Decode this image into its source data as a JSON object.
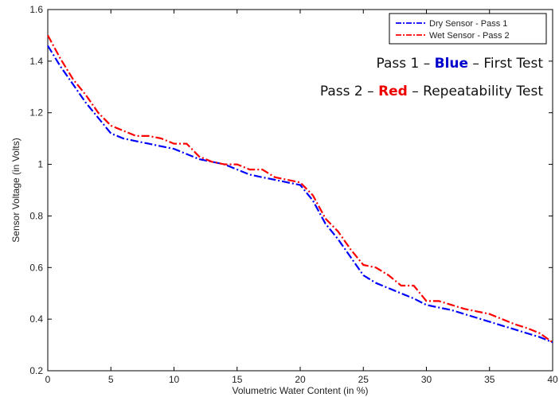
{
  "chart_data": {
    "type": "line",
    "xlabel": "Volumetric Water Content (in %)",
    "ylabel": "Sensor Voltage (in Volts)",
    "xlim": [
      0,
      40
    ],
    "ylim": [
      0.2,
      1.6
    ],
    "xticks": [
      0,
      5,
      10,
      15,
      20,
      25,
      30,
      35,
      40
    ],
    "yticks": [
      0.2,
      0.4,
      0.6,
      0.8,
      1,
      1.2,
      1.4,
      1.6
    ],
    "grid": false,
    "legend_position": "top-right",
    "series": [
      {
        "name": "Dry Sensor - Pass 1",
        "color": "#0000ff",
        "style": "dash-dot",
        "x": [
          0,
          1,
          2,
          3,
          4,
          5,
          6,
          7,
          8,
          9,
          10,
          11,
          12,
          13,
          14,
          15,
          16,
          17,
          18,
          19,
          20,
          21,
          22,
          23,
          24,
          25,
          26,
          27,
          28,
          29,
          30,
          31,
          32,
          33,
          34,
          35,
          36,
          37,
          38,
          39,
          40
        ],
        "values": [
          1.46,
          1.38,
          1.31,
          1.24,
          1.18,
          1.12,
          1.1,
          1.09,
          1.08,
          1.07,
          1.06,
          1.04,
          1.02,
          1.01,
          1.0,
          0.98,
          0.96,
          0.95,
          0.94,
          0.93,
          0.92,
          0.86,
          0.77,
          0.71,
          0.64,
          0.57,
          0.54,
          0.52,
          0.5,
          0.48,
          0.455,
          0.445,
          0.435,
          0.42,
          0.405,
          0.39,
          0.375,
          0.36,
          0.345,
          0.33,
          0.31
        ]
      },
      {
        "name": "Wet Sensor - Pass 2",
        "color": "#ff0000",
        "style": "dash-dot",
        "x": [
          0,
          1,
          2,
          3,
          4,
          5,
          6,
          7,
          8,
          9,
          10,
          11,
          12,
          13,
          14,
          15,
          16,
          17,
          18,
          19,
          20,
          21,
          22,
          23,
          24,
          25,
          26,
          27,
          28,
          29,
          30,
          31,
          32,
          33,
          34,
          35,
          36,
          37,
          38,
          39,
          40
        ],
        "values": [
          1.5,
          1.41,
          1.33,
          1.27,
          1.2,
          1.15,
          1.13,
          1.11,
          1.11,
          1.1,
          1.08,
          1.08,
          1.03,
          1.01,
          1.0,
          1.0,
          0.98,
          0.98,
          0.95,
          0.94,
          0.93,
          0.88,
          0.79,
          0.74,
          0.67,
          0.61,
          0.6,
          0.57,
          0.53,
          0.53,
          0.47,
          0.47,
          0.455,
          0.44,
          0.43,
          0.42,
          0.4,
          0.38,
          0.365,
          0.345,
          0.31
        ]
      }
    ],
    "annotations": [
      {
        "parts": [
          {
            "text": "Pass 1 – ",
            "color": "#111111",
            "bold": false
          },
          {
            "text": "Blue",
            "color": "#0000cc",
            "bold": true
          },
          {
            "text": " – First Test",
            "color": "#111111",
            "bold": false
          }
        ]
      },
      {
        "parts": [
          {
            "text": "Pass 2 – ",
            "color": "#111111",
            "bold": false
          },
          {
            "text": "Red",
            "color": "#ee0000",
            "bold": true
          },
          {
            "text": " – Repeatability Test",
            "color": "#111111",
            "bold": false
          }
        ]
      }
    ]
  }
}
